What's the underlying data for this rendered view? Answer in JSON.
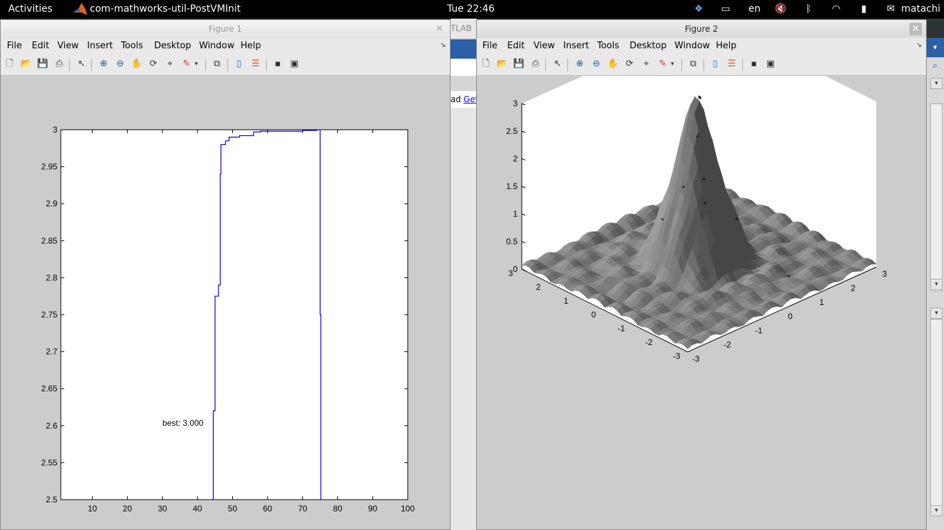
{
  "topbar": {
    "activities": "Activities",
    "app_name": "com-mathworks-util-PostVMInit",
    "clock": "Tue 22:46",
    "language": "en",
    "user": "matachi"
  },
  "background_window": {
    "strip_text": "TLAB",
    "text_prefix": "ad ",
    "link_text": "Get"
  },
  "figure1": {
    "title": "Figure 1",
    "menu": [
      "File",
      "Edit",
      "View",
      "Insert",
      "Tools",
      "Desktop",
      "Window",
      "Help"
    ]
  },
  "figure2": {
    "title": "Figure 2",
    "menu": [
      "File",
      "Edit",
      "View",
      "Insert",
      "Tools",
      "Desktop",
      "Window",
      "Help"
    ]
  },
  "toolbar_icons": [
    "new-file-icon",
    "open-folder-icon",
    "save-icon",
    "print-icon",
    "pointer-icon",
    "zoom-in-icon",
    "zoom-out-icon",
    "pan-hand-icon",
    "rotate-3d-icon",
    "data-cursor-icon",
    "brush-icon",
    "brush-dropdown-icon",
    "link-plot-icon",
    "colorbar-icon",
    "legend-icon",
    "hide-plot-tools-icon",
    "show-plot-tools-icon"
  ],
  "chart_data": [
    {
      "type": "line",
      "xlim": [
        1,
        100
      ],
      "ylim": [
        2.5,
        3
      ],
      "xticks": [
        10,
        20,
        30,
        40,
        50,
        60,
        70,
        80,
        90,
        100
      ],
      "yticks": [
        2.5,
        2.55,
        2.6,
        2.65,
        2.7,
        2.75,
        2.8,
        2.85,
        2.9,
        2.95,
        3
      ],
      "series": [
        {
          "color": "#0000cc",
          "x": [
            44,
            44.5,
            45,
            45.5,
            46,
            46.5,
            46.7,
            47,
            48,
            49,
            52,
            55,
            56,
            58,
            70,
            74,
            74.8,
            75,
            75.2
          ],
          "y": [
            2.5,
            2.62,
            2.775,
            2.775,
            2.79,
            2.94,
            2.98,
            2.98,
            2.985,
            2.99,
            2.992,
            2.992,
            2.997,
            2.998,
            2.999,
            3.0,
            3.0,
            2.75,
            2.5
          ]
        }
      ],
      "annotation": {
        "text": "best: 3.000",
        "x": 30,
        "y": 2.6
      },
      "grid": false
    },
    {
      "type": "surface",
      "xlim": [
        -3,
        3
      ],
      "ylim": [
        -3,
        3
      ],
      "zlim": [
        0,
        3
      ],
      "xticks": [
        -3,
        -2,
        -1,
        0,
        1,
        2,
        3
      ],
      "yticks": [
        -3,
        -2,
        -1,
        0,
        1,
        2,
        3
      ],
      "zticks": [
        0,
        0.5,
        1,
        1.5,
        2,
        2.5,
        3
      ],
      "surface_color": "#7a7a7a",
      "markers": "black stars along optimisation path to peak near (0,0), z≈3"
    }
  ]
}
